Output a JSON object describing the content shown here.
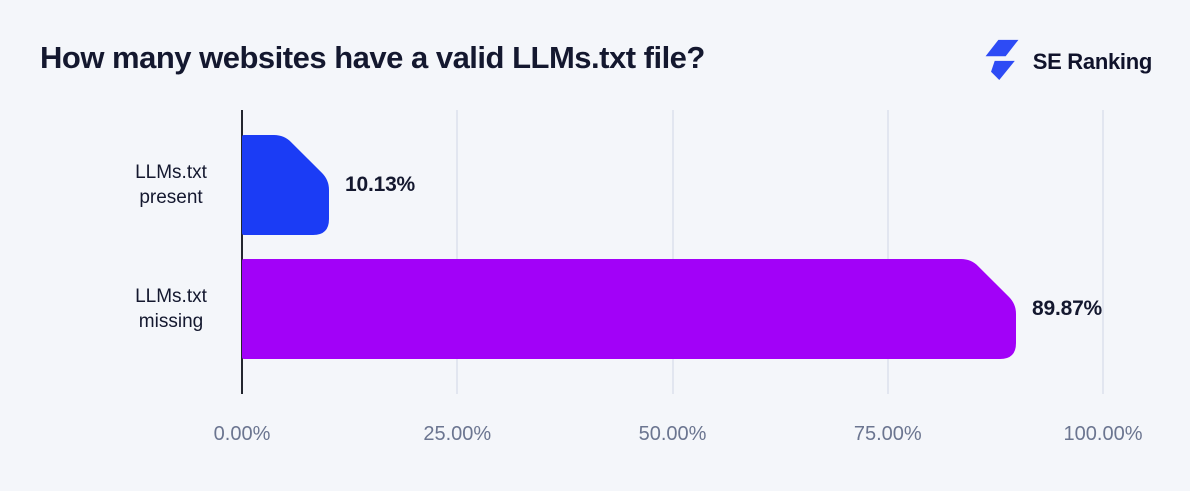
{
  "header": {
    "title": "How many websites have a valid LLMs.txt file?",
    "brand": "SE Ranking",
    "brand_color": "#2d4bf5",
    "logo_icon": "lightning-bolt-icon"
  },
  "colors": {
    "background": "#f4f6fa",
    "text_dark": "#14182f",
    "tick_text": "#6b7590",
    "gridline": "#e2e6f0",
    "axis": "#23262f"
  },
  "chart_data": {
    "type": "bar",
    "orientation": "horizontal",
    "title": "How many websites have a valid LLMs.txt file?",
    "categories": [
      "LLMs.txt present",
      "LLMs.txt missing"
    ],
    "values": [
      10.13,
      89.87
    ],
    "value_labels": [
      "10.13%",
      "89.87%"
    ],
    "bar_colors": [
      "#1b3cf5",
      "#a201f8"
    ],
    "x_ticks": [
      "0.00%",
      "25.00%",
      "50.00%",
      "75.00%",
      "100.00%"
    ],
    "xlim": [
      0,
      100
    ],
    "xlabel": "",
    "ylabel": "",
    "grid": "vertical",
    "legend": "none"
  }
}
